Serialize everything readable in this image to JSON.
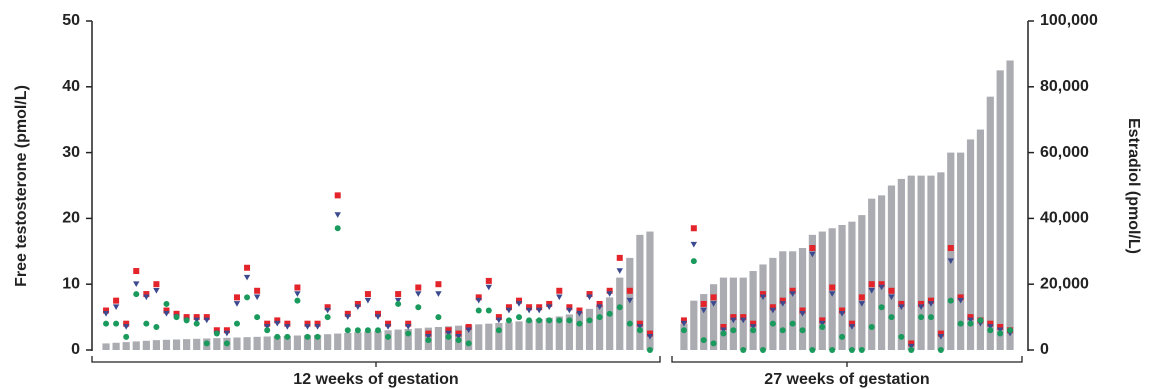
{
  "chart_data": {
    "type": "combo",
    "ylabel": "Free testosterone (pmol/L)",
    "y2label": "Estradiol (pmol/L)",
    "ylim": [
      0,
      50
    ],
    "yticks": [
      0,
      10,
      20,
      30,
      40,
      50
    ],
    "y2lim": [
      0,
      100000
    ],
    "y2ticks": [
      0,
      {
        "value": 20000,
        "label": "20,000"
      },
      {
        "value": 40000,
        "label": "40,000"
      },
      {
        "value": 60000,
        "label": "60,000"
      },
      {
        "value": 80000,
        "label": "80,000"
      },
      {
        "value": 100000,
        "label": "100,000"
      }
    ],
    "groups": [
      {
        "label": "12 weeks of gestation",
        "series": [
          {
            "marker": "bar",
            "axis": "y2",
            "color": "#ababb2",
            "values": [
              2000,
              2200,
              2400,
              2600,
              2800,
              3000,
              3100,
              3200,
              3300,
              3400,
              3500,
              3600,
              3700,
              3800,
              3900,
              4000,
              4100,
              4200,
              4300,
              4400,
              4500,
              4600,
              4800,
              5000,
              5200,
              5400,
              5600,
              5800,
              6000,
              6200,
              6400,
              6600,
              6800,
              7000,
              7200,
              7400,
              7600,
              7800,
              8000,
              8200,
              8400,
              8700,
              9000,
              9400,
              9800,
              10200,
              10800,
              11500,
              12500,
              13500,
              16000,
              22000,
              28000,
              35000,
              36000
            ]
          },
          {
            "marker": "square",
            "color": "#e3242b",
            "values": [
              6,
              7.5,
              4,
              12,
              8.5,
              10,
              6,
              5.5,
              5,
              5,
              5,
              3,
              3,
              8,
              12.5,
              9,
              4,
              4.5,
              4,
              9.5,
              4,
              4,
              6.5,
              23.5,
              5.5,
              7,
              8.5,
              5.5,
              4,
              8.5,
              4,
              9.5,
              2.5,
              10,
              3,
              2.5,
              3.5,
              8,
              10.5,
              5,
              6.5,
              7.5,
              6.5,
              6.5,
              7,
              9,
              6.5,
              6,
              8.5,
              7,
              9,
              14,
              9,
              4,
              2.5
            ]
          },
          {
            "marker": "triangle",
            "color": "#3b4a8f",
            "values": [
              5.5,
              6.5,
              3.5,
              10,
              8,
              9,
              5.5,
              5,
              4.5,
              4.5,
              4.5,
              2.5,
              2.5,
              7,
              11,
              8,
              3.5,
              4,
              3.5,
              8.5,
              3.5,
              3.5,
              6,
              20.5,
              5,
              6.5,
              7.5,
              5,
              3.5,
              7.5,
              3.5,
              8.5,
              2,
              8.5,
              2.5,
              2,
              3,
              7.5,
              9.5,
              4.5,
              6,
              7,
              6,
              6,
              6.5,
              8,
              6,
              5.5,
              8,
              6.5,
              8.5,
              12,
              7.5,
              3.5,
              2
            ]
          },
          {
            "marker": "circle",
            "color": "#1a9a5c",
            "values": [
              4,
              4,
              2,
              8.5,
              4,
              3.5,
              7,
              5,
              4.5,
              4,
              1,
              2.5,
              1,
              4,
              8,
              5,
              3,
              2,
              2,
              7.5,
              2,
              2,
              5,
              18.5,
              3,
              3,
              3,
              3,
              2,
              7,
              2.5,
              6.5,
              1.5,
              5,
              2,
              1.5,
              1,
              6,
              6,
              3,
              4.5,
              5,
              4.5,
              4.5,
              4.5,
              4.5,
              4.5,
              4,
              4.5,
              5,
              5.5,
              6.5,
              4,
              3,
              0
            ]
          }
        ]
      },
      {
        "label": "27 weeks of gestation",
        "series": [
          {
            "marker": "bar",
            "axis": "y2",
            "color": "#ababb2",
            "values": [
              8000,
              15000,
              17000,
              20000,
              22000,
              22000,
              22000,
              24000,
              26000,
              28000,
              30000,
              30000,
              31000,
              35000,
              36000,
              37000,
              38000,
              39000,
              41000,
              46000,
              47000,
              50000,
              52000,
              53000,
              53000,
              53000,
              54000,
              60000,
              60000,
              64000,
              67000,
              77000,
              85000,
              88000
            ]
          },
          {
            "marker": "square",
            "color": "#e3242b",
            "values": [
              4.5,
              18.5,
              7,
              8,
              3.5,
              5,
              5,
              4,
              8.5,
              6.5,
              7.5,
              9,
              6,
              15.5,
              4.5,
              9.5,
              6,
              4,
              8,
              10,
              10,
              9,
              7,
              1,
              7,
              7.5,
              2.5,
              15.5,
              8,
              5,
              4.5,
              4,
              3.5,
              3
            ]
          },
          {
            "marker": "triangle",
            "color": "#3b4a8f",
            "values": [
              4,
              16,
              6,
              7,
              3,
              4.5,
              4.5,
              3.5,
              8,
              6,
              7,
              8.5,
              5.5,
              14.5,
              4,
              8.5,
              5.5,
              3.5,
              7,
              9,
              9.5,
              8,
              6.5,
              0.5,
              6.5,
              7,
              2,
              13.5,
              7.5,
              4.5,
              4,
              3.5,
              3,
              2.5
            ]
          },
          {
            "marker": "circle",
            "color": "#1a9a5c",
            "values": [
              3,
              13.5,
              1.5,
              1,
              2.5,
              3,
              0,
              3,
              0,
              4,
              3,
              4,
              3,
              0,
              3.5,
              0,
              2,
              0,
              0,
              3.5,
              6.5,
              5,
              2,
              0,
              5,
              5,
              0,
              7.5,
              4,
              4,
              4.5,
              3,
              2.5,
              3
            ]
          }
        ]
      }
    ]
  }
}
